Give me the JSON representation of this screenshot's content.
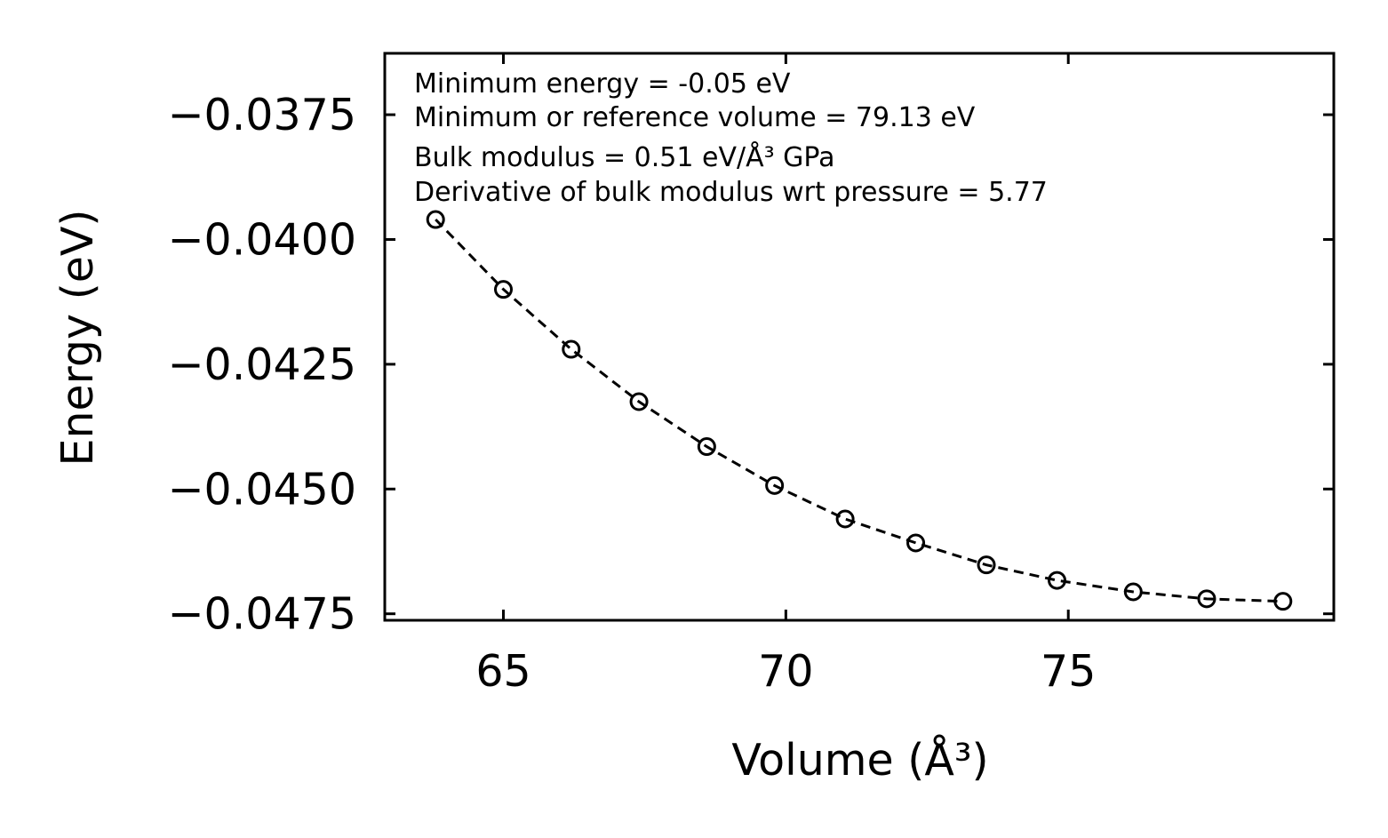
{
  "chart_data": {
    "type": "line",
    "title": "",
    "xlabel": "Volume (Å³)",
    "ylabel": "Energy (eV)",
    "xlim": [
      62.9,
      79.7
    ],
    "ylim": [
      -0.04763,
      -0.03627
    ],
    "xticks": [
      {
        "value": 65,
        "label": "65"
      },
      {
        "value": 70,
        "label": "70"
      },
      {
        "value": 75,
        "label": "75"
      }
    ],
    "yticks": [
      {
        "value": -0.0375,
        "label": "−0.0375"
      },
      {
        "value": -0.04,
        "label": "−0.0400"
      },
      {
        "value": -0.0425,
        "label": "−0.0425"
      },
      {
        "value": -0.045,
        "label": "−0.0450"
      },
      {
        "value": -0.0475,
        "label": "−0.0475"
      }
    ],
    "grid": false,
    "series": [
      {
        "name": "data",
        "style": "dashed-line-open-circles",
        "color": "#000000",
        "x": [
          63.8,
          65.0,
          66.2,
          67.4,
          68.6,
          69.8,
          71.05,
          72.3,
          73.55,
          74.8,
          76.15,
          77.45,
          78.8
        ],
        "y": [
          -0.0396,
          -0.041,
          -0.0422,
          -0.04325,
          -0.04415,
          -0.04493,
          -0.0456,
          -0.04608,
          -0.04652,
          -0.04683,
          -0.04706,
          -0.0472,
          -0.04725
        ]
      }
    ],
    "annotations": [
      {
        "text": "Minimum energy = -0.05 eV"
      },
      {
        "text": "Minimum or reference volume = 79.13 eV"
      },
      {
        "text": "Bulk modulus = 0.51 eV/Å³ GPa"
      },
      {
        "text": "Derivative of bulk modulus wrt pressure = 5.77"
      }
    ]
  }
}
